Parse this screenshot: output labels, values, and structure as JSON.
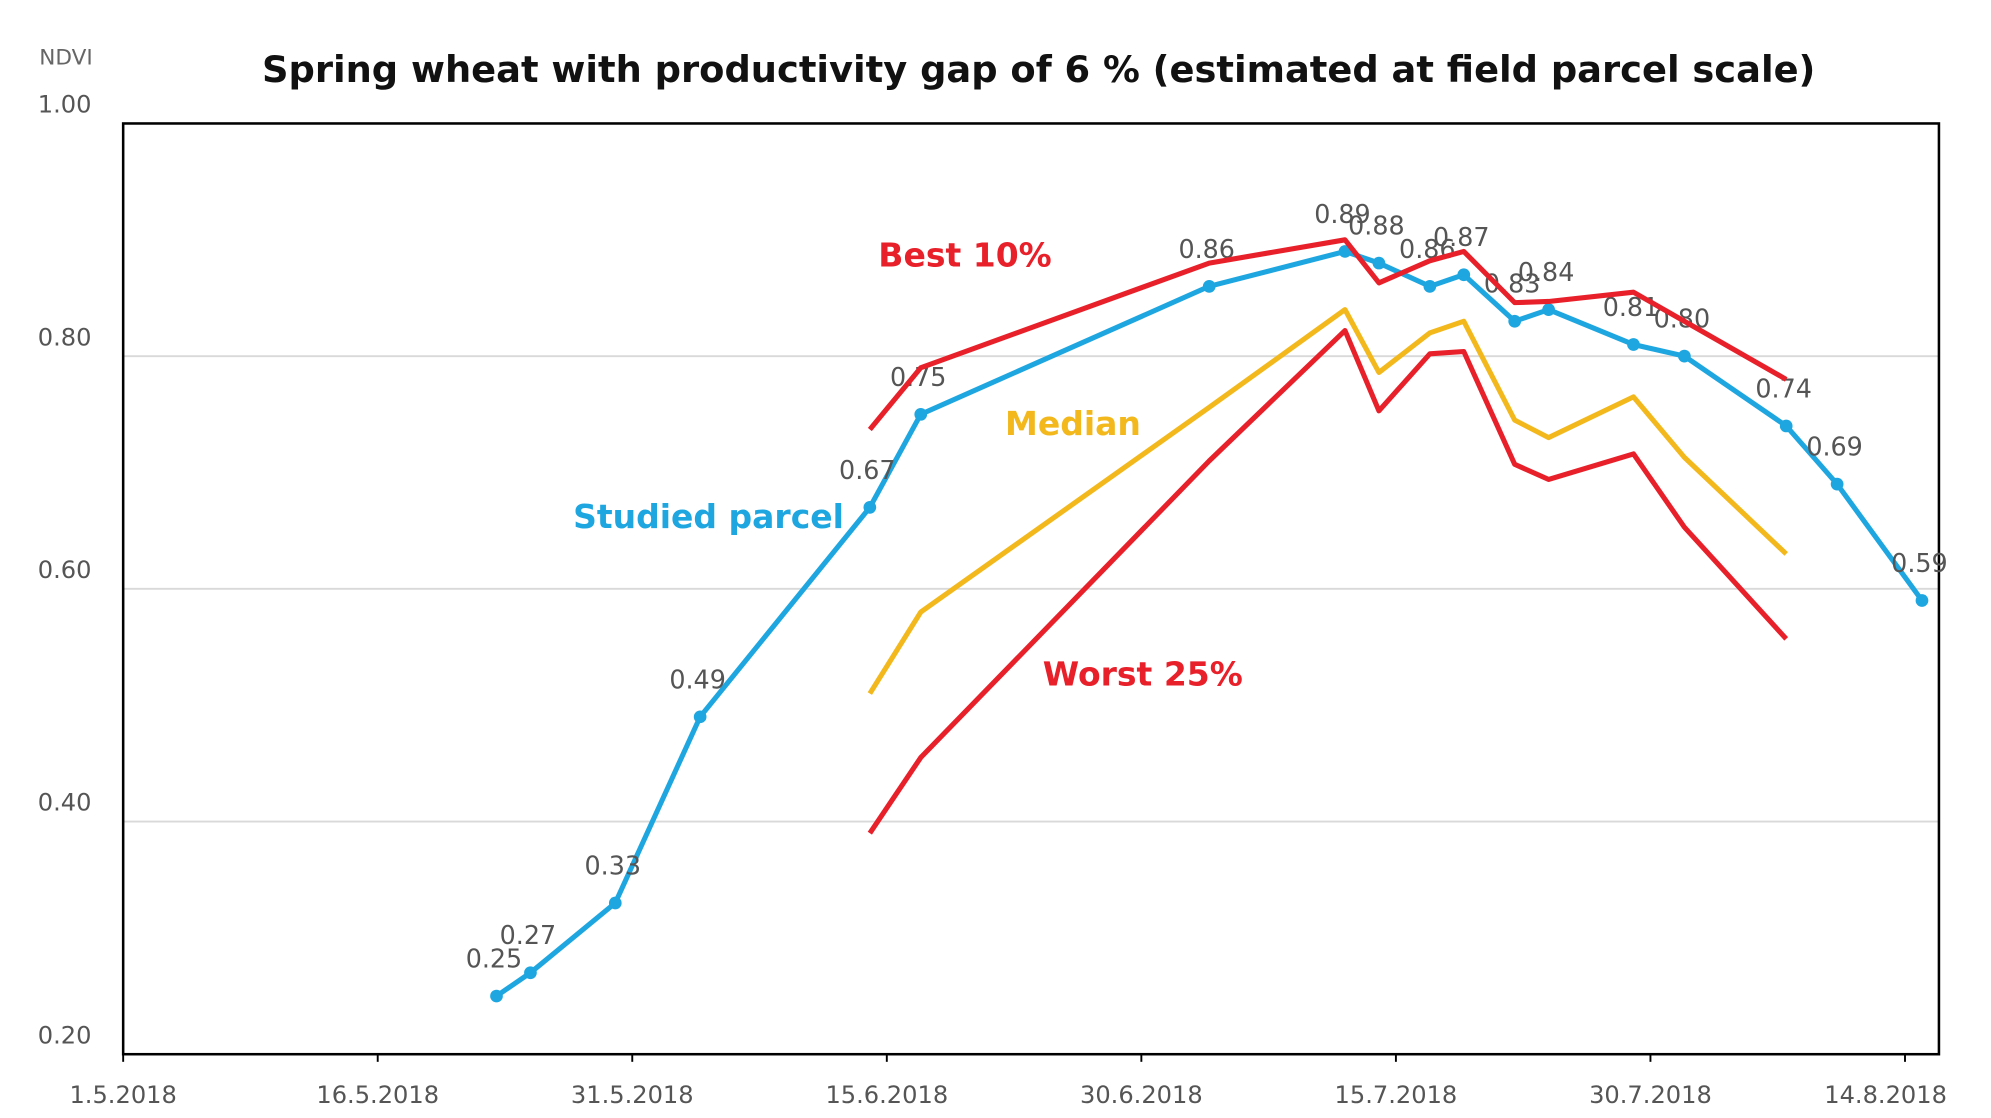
{
  "chart_data": {
    "type": "line",
    "title": "Spring wheat with productivity gap of 6 % (estimated at field parcel scale)",
    "y_label": "NDVI",
    "x": [
      "2018-05-23",
      "2018-05-25",
      "2018-05-30",
      "2018-06-04",
      "2018-06-14",
      "2018-06-17",
      "2018-07-04",
      "2018-07-12",
      "2018-07-14",
      "2018-07-17",
      "2018-07-19",
      "2018-07-22",
      "2018-07-24",
      "2018-07-29",
      "2018-08-01",
      "2018-08-07",
      "2018-08-10",
      "2018-08-15"
    ],
    "series": [
      {
        "name": "Studied parcel",
        "color": "#1ea6e0",
        "values": [
          0.25,
          0.27,
          0.33,
          0.49,
          0.67,
          0.75,
          0.86,
          0.89,
          0.88,
          0.86,
          0.87,
          0.83,
          0.84,
          0.81,
          0.8,
          0.74,
          0.69,
          0.59
        ],
        "value_labels": [
          "0.25",
          "0.27",
          "0.33",
          "0.49",
          "0.67",
          "0.75",
          "0.86",
          "0.89",
          "0.88",
          "0.86",
          "0.87",
          "0.83",
          "0.84",
          "0.81",
          "0.80",
          "0.74",
          "0.69",
          "0.59"
        ]
      },
      {
        "name": "Best 10%",
        "color": "#e8202a",
        "values": [
          null,
          null,
          null,
          null,
          0.737,
          0.79,
          0.88,
          0.9,
          0.863,
          0.882,
          0.89,
          0.846,
          0.847,
          0.855,
          0.83,
          0.78,
          null,
          null
        ]
      },
      {
        "name": "Median",
        "color": "#f2b81c",
        "values": [
          null,
          null,
          null,
          null,
          0.51,
          0.58,
          0.756,
          0.84,
          0.786,
          0.82,
          0.83,
          0.745,
          0.73,
          0.765,
          0.713,
          0.63,
          null,
          null
        ]
      },
      {
        "name": "Worst 25%",
        "color": "#e8202a",
        "values": [
          null,
          null,
          null,
          null,
          0.39,
          0.455,
          0.71,
          0.822,
          0.753,
          0.802,
          0.804,
          0.707,
          0.694,
          0.716,
          0.653,
          0.557,
          null,
          null
        ]
      }
    ],
    "xlim": [
      "2018-05-01",
      "2018-08-16"
    ],
    "xticks": [
      {
        "value": "2018-05-01",
        "label": "1.5.2018"
      },
      {
        "value": "2018-05-16",
        "label": "16.5.2018"
      },
      {
        "value": "2018-05-31",
        "label": "31.5.2018"
      },
      {
        "value": "2018-06-15",
        "label": "15.6.2018"
      },
      {
        "value": "2018-06-30",
        "label": "30.6.2018"
      },
      {
        "value": "2018-07-15",
        "label": "15.7.2018"
      },
      {
        "value": "2018-07-30",
        "label": "30.7.2018"
      },
      {
        "value": "2018-08-14",
        "label": "14.8.2018"
      }
    ],
    "ylim": [
      0.2,
      1.0
    ],
    "yticks": [
      {
        "value": 0.2,
        "label": "0.20"
      },
      {
        "value": 0.4,
        "label": "0.40"
      },
      {
        "value": 0.6,
        "label": "0.60"
      },
      {
        "value": 0.8,
        "label": "0.80"
      },
      {
        "value": 1.0,
        "label": "1.00"
      }
    ],
    "grid": true
  }
}
